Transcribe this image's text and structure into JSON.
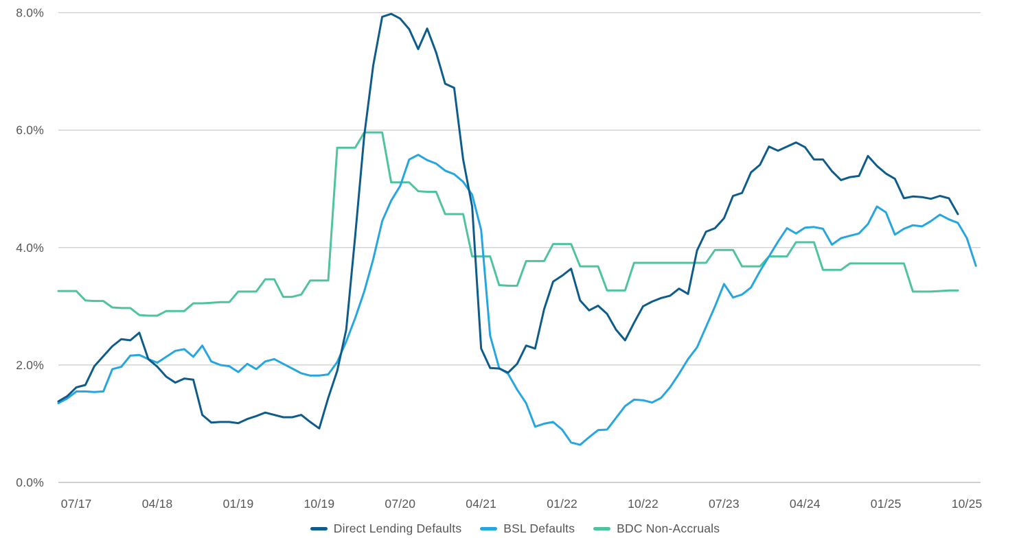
{
  "chart_data": {
    "type": "line",
    "title": "",
    "xlabel": "",
    "ylabel": "",
    "ylim": [
      0,
      8
    ],
    "grid": "horizontal-only",
    "legend_position": "bottom-center",
    "x_start_month": "05/17",
    "x_frequency": "monthly",
    "y_ticks": [
      {
        "label": "0.0%",
        "value": 0
      },
      {
        "label": "2.0%",
        "value": 2
      },
      {
        "label": "4.0%",
        "value": 4
      },
      {
        "label": "6.0%",
        "value": 6
      },
      {
        "label": "8.0%",
        "value": 8
      }
    ],
    "x_ticks": [
      {
        "label": "07/17",
        "i": 2
      },
      {
        "label": "04/18",
        "i": 11
      },
      {
        "label": "01/19",
        "i": 20
      },
      {
        "label": "10/19",
        "i": 29
      },
      {
        "label": "07/20",
        "i": 38
      },
      {
        "label": "04/21",
        "i": 47
      },
      {
        "label": "01/22",
        "i": 56
      },
      {
        "label": "10/22",
        "i": 65
      },
      {
        "label": "07/23",
        "i": 74
      },
      {
        "label": "04/24",
        "i": 83
      },
      {
        "label": "01/25",
        "i": 92
      },
      {
        "label": "10/25",
        "i": 101
      }
    ],
    "series": [
      {
        "name": "Direct Lending Defaults",
        "color": "#0e5c8c",
        "values": [
          1.38,
          1.47,
          1.62,
          1.66,
          1.98,
          2.15,
          2.32,
          2.44,
          2.42,
          2.55,
          2.1,
          1.97,
          1.8,
          1.7,
          1.77,
          1.75,
          1.15,
          1.02,
          1.03,
          1.03,
          1.01,
          1.08,
          1.13,
          1.19,
          1.15,
          1.11,
          1.11,
          1.15,
          1.03,
          0.92,
          1.44,
          1.9,
          2.6,
          4.2,
          5.9,
          7.1,
          7.93,
          7.98,
          7.9,
          7.72,
          7.38,
          7.73,
          7.32,
          6.79,
          6.72,
          5.5,
          4.7,
          2.28,
          1.95,
          1.94,
          1.87,
          2.02,
          2.33,
          2.28,
          2.95,
          3.42,
          3.52,
          3.64,
          3.1,
          2.93,
          3.01,
          2.87,
          2.6,
          2.42,
          2.72,
          3.0,
          3.08,
          3.14,
          3.18,
          3.3,
          3.21,
          3.95,
          4.27,
          4.33,
          4.5,
          4.88,
          4.93,
          5.28,
          5.41,
          5.72,
          5.65,
          5.72,
          5.79,
          5.71,
          5.5,
          5.5,
          5.3,
          5.15,
          5.2,
          5.22,
          5.56,
          5.39,
          5.26,
          5.17,
          4.84,
          4.87,
          4.86,
          4.83,
          4.88,
          4.84,
          4.57
        ]
      },
      {
        "name": "BSL Defaults",
        "color": "#26a6e0",
        "values": [
          1.35,
          1.43,
          1.55,
          1.55,
          1.54,
          1.55,
          1.93,
          1.97,
          2.16,
          2.17,
          2.1,
          2.04,
          2.14,
          2.24,
          2.27,
          2.14,
          2.33,
          2.06,
          2.0,
          1.98,
          1.88,
          2.02,
          1.93,
          2.06,
          2.1,
          2.02,
          1.94,
          1.86,
          1.82,
          1.82,
          1.84,
          2.05,
          2.4,
          2.8,
          3.25,
          3.8,
          4.45,
          4.8,
          5.05,
          5.5,
          5.58,
          5.49,
          5.43,
          5.31,
          5.25,
          5.12,
          4.9,
          4.3,
          2.5,
          1.95,
          1.85,
          1.58,
          1.35,
          0.95,
          1.0,
          1.03,
          0.9,
          0.68,
          0.64,
          0.77,
          0.89,
          0.9,
          1.1,
          1.3,
          1.41,
          1.4,
          1.36,
          1.44,
          1.62,
          1.85,
          2.1,
          2.3,
          2.65,
          3.0,
          3.38,
          3.15,
          3.2,
          3.32,
          3.6,
          3.85,
          4.1,
          4.33,
          4.24,
          4.34,
          4.35,
          4.32,
          4.05,
          4.16,
          4.2,
          4.24,
          4.4,
          4.7,
          4.6,
          4.22,
          4.32,
          4.38,
          4.36,
          4.45,
          4.56,
          4.48,
          4.42,
          4.16,
          3.69
        ]
      },
      {
        "name": "BDC Non-Accruals",
        "color": "#4fc2a0",
        "values": [
          3.26,
          3.26,
          3.26,
          3.1,
          3.09,
          3.09,
          2.98,
          2.97,
          2.97,
          2.85,
          2.84,
          2.84,
          2.92,
          2.92,
          2.92,
          3.05,
          3.05,
          3.06,
          3.07,
          3.07,
          3.25,
          3.25,
          3.25,
          3.46,
          3.46,
          3.16,
          3.16,
          3.2,
          3.44,
          3.44,
          3.44,
          5.7,
          5.7,
          5.7,
          5.96,
          5.96,
          5.96,
          5.11,
          5.11,
          5.11,
          4.96,
          4.95,
          4.95,
          4.57,
          4.57,
          4.57,
          3.85,
          3.85,
          3.85,
          3.36,
          3.35,
          3.35,
          3.77,
          3.77,
          3.77,
          4.06,
          4.06,
          4.06,
          3.68,
          3.68,
          3.68,
          3.27,
          3.27,
          3.27,
          3.74,
          3.74,
          3.74,
          3.74,
          3.74,
          3.74,
          3.74,
          3.74,
          3.74,
          3.96,
          3.96,
          3.96,
          3.68,
          3.68,
          3.68,
          3.85,
          3.85,
          3.85,
          4.09,
          4.09,
          4.09,
          3.62,
          3.62,
          3.62,
          3.73,
          3.73,
          3.73,
          3.73,
          3.73,
          3.73,
          3.73,
          3.25,
          3.25,
          3.25,
          3.26,
          3.27,
          3.27
        ]
      }
    ],
    "style": {
      "gridline_color": "#cbccce",
      "baseline_color": "#b3b4b7",
      "axis_text_color": "#55565a",
      "line_width": 3
    }
  },
  "legend": {
    "items": [
      "Direct Lending Defaults",
      "BSL Defaults",
      "BDC Non-Accruals"
    ]
  }
}
